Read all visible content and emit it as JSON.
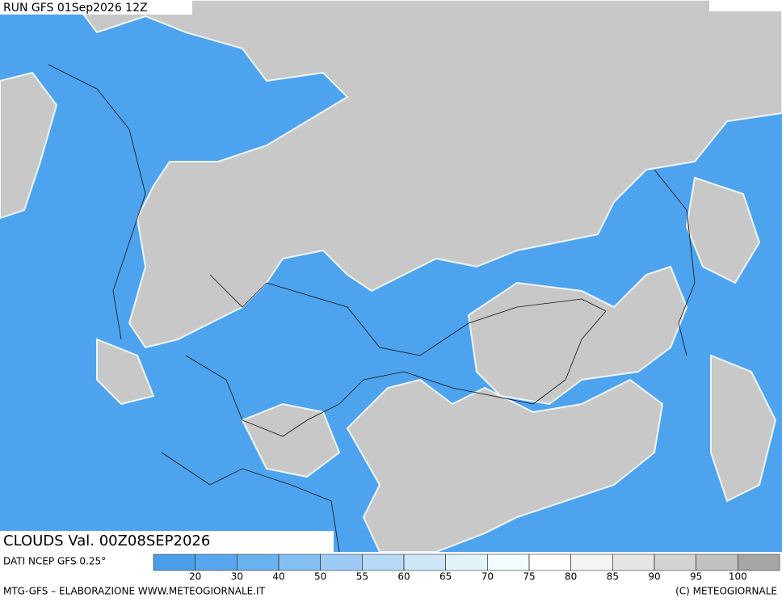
{
  "header": {
    "run": "RUN GFS 01Sep2026 12Z"
  },
  "map": {
    "label": "CLOUDS Val. 00Z08SEP2026"
  },
  "legend": {
    "source": "DATI NCEP GFS 0.25°",
    "colors": [
      "#4a9fe8",
      "#58a7ee",
      "#6ab1f0",
      "#84bff2",
      "#9ecbf4",
      "#b6d9f6",
      "#cde6f8",
      "#e3f3fa",
      "#f2fbfd",
      "#ffffff",
      "#f4f4f4",
      "#e6e6e6",
      "#d4d4d4",
      "#c2c2c2",
      "#a6a6a6"
    ],
    "ticks": [
      20,
      30,
      40,
      50,
      55,
      60,
      65,
      70,
      75,
      80,
      85,
      90,
      95,
      100
    ]
  },
  "footer": {
    "left": "MTG-GFS – ELABORAZIONE WWW.METEOGIORNALE.IT",
    "right": "(C) METEOGIORNALE"
  }
}
